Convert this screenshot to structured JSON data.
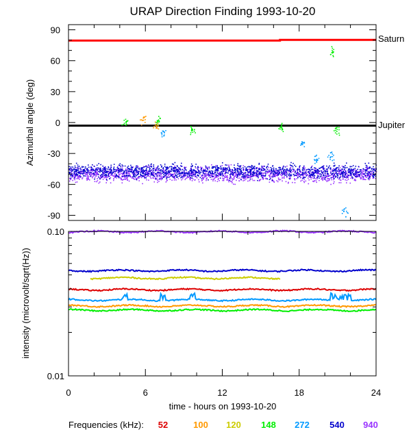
{
  "title": "URAP Direction Finding  1993-10-20",
  "xlabel": "time - hours on 1993-10-20",
  "x_ticks": [
    "0",
    "6",
    "12",
    "18",
    "24"
  ],
  "legend": {
    "label": "Frequencies (kHz):",
    "items": [
      {
        "text": "52",
        "color": "#dd0000"
      },
      {
        "text": "100",
        "color": "#ff9900"
      },
      {
        "text": "120",
        "color": "#cccc00"
      },
      {
        "text": "148",
        "color": "#00ee00"
      },
      {
        "text": "272",
        "color": "#0099ff"
      },
      {
        "text": "540",
        "color": "#0000cc"
      },
      {
        "text": "940",
        "color": "#9933ff"
      }
    ]
  },
  "chart_data": [
    {
      "type": "scatter",
      "panel": "azimuth",
      "ylabel": "Azimuthal angle (deg)",
      "ylim": [
        -95,
        95
      ],
      "xlim": [
        0,
        24
      ],
      "y_ticks": [
        "90",
        "60",
        "30",
        "0",
        "-30",
        "-60",
        "-90"
      ],
      "y_tick_values": [
        90,
        60,
        30,
        0,
        -30,
        -60,
        -90
      ],
      "reference_lines": [
        {
          "name": "Saturn",
          "y": [
            [
              0,
              79.5
            ],
            [
              16.5,
              79.5
            ],
            [
              16.5,
              80.2
            ],
            [
              24,
              80.2
            ]
          ],
          "color": "#ff0000"
        },
        {
          "name": "Jupiter",
          "y": [
            [
              0,
              -3
            ],
            [
              24,
              -3
            ]
          ],
          "color": "#000000"
        }
      ],
      "series": [
        {
          "freq": "940",
          "color": "#9933ff",
          "center": -50,
          "spread": 11,
          "x_range": [
            0,
            24
          ]
        },
        {
          "freq": "540",
          "color": "#0000cc",
          "center": -47,
          "spread": 10,
          "x_range": [
            0,
            24
          ]
        },
        {
          "freq": "148",
          "color": "#00ee00",
          "clusters": [
            [
              4.4,
              1
            ],
            [
              7,
              2
            ],
            [
              9.6,
              -7
            ],
            [
              16.6,
              -4
            ],
            [
              20.9,
              -8
            ],
            [
              20.6,
              69
            ]
          ]
        },
        {
          "freq": "100",
          "color": "#ff9900",
          "clusters": [
            [
              5.8,
              3
            ],
            [
              6.8,
              -3
            ]
          ]
        },
        {
          "freq": "272",
          "color": "#0099ff",
          "clusters": [
            [
              7.4,
              -10
            ],
            [
              18.2,
              -20
            ],
            [
              19.3,
              -35
            ],
            [
              20.5,
              -32
            ],
            [
              21.5,
              -86
            ]
          ]
        }
      ]
    },
    {
      "type": "line",
      "panel": "intensity",
      "ylabel": "intensity (microvolt/sqrt(Hz))",
      "yscale": "log",
      "ylim": [
        0.01,
        0.1
      ],
      "xlim": [
        0,
        24
      ],
      "y_ticks": [
        "0.10",
        "0.01"
      ],
      "y_tick_values": [
        0.1,
        0.01
      ],
      "series": [
        {
          "freq": "940",
          "color": "#9933ff",
          "level": 0.0995,
          "x_range": [
            0,
            24
          ]
        },
        {
          "freq": "540",
          "color": "#0000cc",
          "level": 0.0535,
          "x_range": [
            0,
            24
          ]
        },
        {
          "freq": "120",
          "color": "#cccc00",
          "level": 0.0475,
          "x_range": [
            1.7,
            16.5
          ]
        },
        {
          "freq": "52",
          "color": "#dd0000",
          "level": 0.0395,
          "x_range": [
            0,
            24
          ]
        },
        {
          "freq": "272",
          "color": "#0099ff",
          "level": 0.0335,
          "x_range": [
            0,
            24
          ]
        },
        {
          "freq": "100",
          "color": "#ff9900",
          "level": 0.0305,
          "x_range": [
            0,
            24
          ]
        },
        {
          "freq": "148",
          "color": "#00ee00",
          "level": 0.0285,
          "x_range": [
            0,
            24
          ]
        }
      ]
    }
  ]
}
